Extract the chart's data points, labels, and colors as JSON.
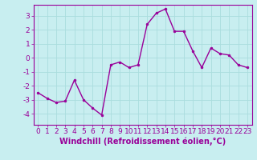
{
  "x": [
    0,
    1,
    2,
    3,
    4,
    5,
    6,
    7,
    8,
    9,
    10,
    11,
    12,
    13,
    14,
    15,
    16,
    17,
    18,
    19,
    20,
    21,
    22,
    23
  ],
  "y": [
    -2.5,
    -2.9,
    -3.2,
    -3.1,
    -1.6,
    -3.0,
    -3.6,
    -4.1,
    -0.5,
    -0.3,
    -0.7,
    -0.5,
    2.4,
    3.2,
    3.5,
    1.9,
    1.9,
    0.5,
    -0.7,
    0.7,
    0.3,
    0.2,
    -0.5,
    -0.7
  ],
  "line_color": "#990099",
  "marker": "o",
  "marker_size": 2.0,
  "bg_color": "#c8eef0",
  "grid_color": "#aadddd",
  "xlabel": "Windchill (Refroidissement éolien,°C)",
  "xlabel_color": "#990099",
  "tick_color": "#990099",
  "label_color": "#990099",
  "ylim": [
    -4.8,
    3.8
  ],
  "xlim": [
    -0.5,
    23.5
  ],
  "yticks": [
    -4,
    -3,
    -2,
    -1,
    0,
    1,
    2,
    3
  ],
  "xticks": [
    0,
    1,
    2,
    3,
    4,
    5,
    6,
    7,
    8,
    9,
    10,
    11,
    12,
    13,
    14,
    15,
    16,
    17,
    18,
    19,
    20,
    21,
    22,
    23
  ],
  "linewidth": 1.0,
  "xlabel_fontsize": 7.0,
  "tick_fontsize": 6.5
}
